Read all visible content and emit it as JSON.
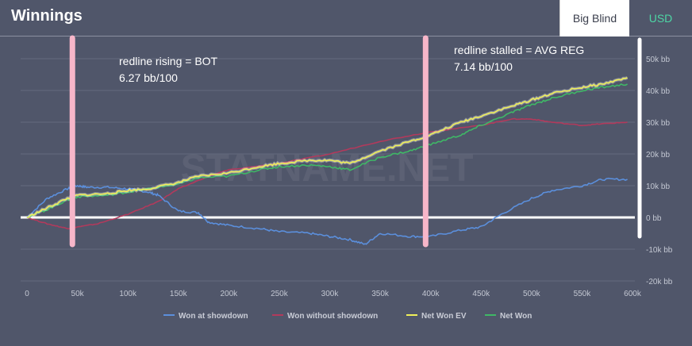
{
  "header": {
    "title": "Winnings",
    "tabs": [
      {
        "label": "Big Blind",
        "active": true
      },
      {
        "label": "USD",
        "active": false
      }
    ]
  },
  "watermark": "STATNAME.NET",
  "annotations": [
    {
      "line1": "redline rising = BOT",
      "line2": "6.27 bb/100",
      "x": 45000
    },
    {
      "line1": "redline stalled = AVG REG",
      "line2": "7.14 bb/100",
      "x": 395000
    }
  ],
  "colors": {
    "background": "#50566a",
    "grid": "#656b7d",
    "won_at_showdown": "#5b8fdc",
    "won_without_showdown": "#b23a5c",
    "net_won_ev": "#f0f059",
    "net_won": "#3fb866",
    "marker": "#f7b6c9",
    "accent": "#4dd6a5"
  },
  "chart_data": {
    "type": "line",
    "title": "",
    "xlabel": "",
    "ylabel": "",
    "xlim": [
      0,
      600000
    ],
    "ylim": [
      -20000,
      50000
    ],
    "x_ticks": [
      0,
      50000,
      100000,
      150000,
      200000,
      250000,
      300000,
      350000,
      400000,
      450000,
      500000,
      550000,
      600000
    ],
    "x_tick_labels": [
      "0",
      "50k",
      "100k",
      "150k",
      "200k",
      "250k",
      "300k",
      "350k",
      "400k",
      "450k",
      "500k",
      "550k",
      "600k"
    ],
    "y_ticks": [
      -20000,
      -10000,
      0,
      10000,
      20000,
      30000,
      40000,
      50000
    ],
    "y_tick_labels": [
      "-20k bb",
      "-10k bb",
      "0 bb",
      "10k bb",
      "20k bb",
      "30k bb",
      "40k bb",
      "50k bb"
    ],
    "grid": true,
    "legend_position": "bottom",
    "series": [
      {
        "name": "Won at showdown",
        "x": [
          0,
          20000,
          40000,
          50000,
          60000,
          80000,
          100000,
          120000,
          130000,
          150000,
          170000,
          180000,
          200000,
          230000,
          250000,
          280000,
          300000,
          320000,
          335000,
          350000,
          380000,
          400000,
          430000,
          450000,
          470000,
          500000,
          520000,
          550000,
          570000,
          595000
        ],
        "values": [
          0,
          6000,
          9000,
          10000,
          9500,
          9500,
          9000,
          8000,
          7000,
          2000,
          1500,
          -1500,
          -2500,
          -3500,
          -4500,
          -5000,
          -6000,
          -7000,
          -8500,
          -5000,
          -6000,
          -6000,
          -4000,
          -3000,
          1000,
          6000,
          8500,
          10000,
          12000,
          12000
        ]
      },
      {
        "name": "Won without showdown",
        "x": [
          0,
          20000,
          40000,
          50000,
          70000,
          100000,
          130000,
          150000,
          180000,
          200000,
          250000,
          300000,
          350000,
          400000,
          450000,
          480000,
          500000,
          520000,
          550000,
          570000,
          595000
        ],
        "values": [
          0,
          -2000,
          -3500,
          -3000,
          -2000,
          1000,
          5000,
          9000,
          13000,
          15000,
          17000,
          20000,
          24000,
          27000,
          29000,
          31000,
          31000,
          30000,
          29000,
          29500,
          30000
        ]
      },
      {
        "name": "Net Won EV",
        "x": [
          0,
          20000,
          40000,
          50000,
          80000,
          100000,
          120000,
          150000,
          170000,
          200000,
          230000,
          250000,
          280000,
          300000,
          320000,
          350000,
          380000,
          400000,
          430000,
          450000,
          480000,
          500000,
          520000,
          550000,
          570000,
          595000
        ],
        "values": [
          0,
          3000,
          6000,
          7000,
          7500,
          8500,
          9000,
          11000,
          13000,
          14000,
          16000,
          17000,
          18000,
          18000,
          17000,
          21000,
          24000,
          26000,
          30000,
          32000,
          35000,
          37000,
          39000,
          41000,
          42000,
          44000
        ]
      },
      {
        "name": "Net Won",
        "x": [
          0,
          20000,
          40000,
          50000,
          80000,
          100000,
          120000,
          150000,
          170000,
          200000,
          230000,
          250000,
          280000,
          300000,
          320000,
          350000,
          380000,
          400000,
          430000,
          450000,
          480000,
          500000,
          520000,
          550000,
          570000,
          595000
        ],
        "values": [
          0,
          2500,
          5500,
          6500,
          7000,
          8000,
          9000,
          10500,
          12500,
          13000,
          15000,
          16000,
          16500,
          16000,
          15000,
          19000,
          21000,
          23000,
          26000,
          29000,
          33000,
          35500,
          37500,
          40000,
          41000,
          42000
        ]
      }
    ]
  }
}
